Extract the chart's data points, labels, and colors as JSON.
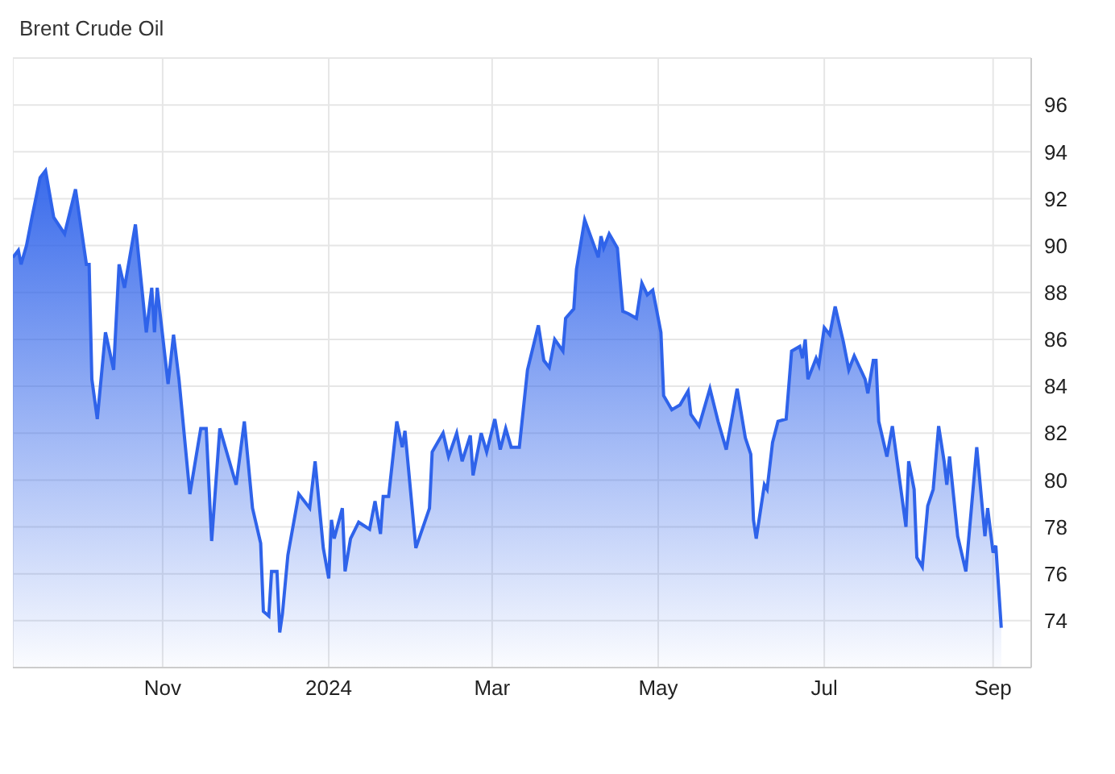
{
  "chart_data": {
    "type": "area",
    "title": "Brent Crude Oil",
    "x": [
      "2023-09-07",
      "2023-09-09",
      "2023-09-10",
      "2023-09-12",
      "2023-09-14",
      "2023-09-17",
      "2023-09-19",
      "2023-09-22",
      "2023-09-26",
      "2023-09-30",
      "2023-10-04",
      "2023-10-05",
      "2023-10-06",
      "2023-10-08",
      "2023-10-11",
      "2023-10-14",
      "2023-10-16",
      "2023-10-18",
      "2023-10-22",
      "2023-10-26",
      "2023-10-28",
      "2023-10-29",
      "2023-10-30",
      "2023-11-03",
      "2023-11-05",
      "2023-11-07",
      "2023-11-11",
      "2023-11-15",
      "2023-11-17",
      "2023-11-19",
      "2023-11-22",
      "2023-11-28",
      "2023-12-01",
      "2023-12-04",
      "2023-12-07",
      "2023-12-08",
      "2023-12-10",
      "2023-12-11",
      "2023-12-13",
      "2023-12-14",
      "2023-12-15",
      "2023-12-17",
      "2023-12-21",
      "2023-12-25",
      "2023-12-27",
      "2023-12-30",
      "2024-01-01",
      "2024-01-02",
      "2024-01-03",
      "2024-01-06",
      "2024-01-07",
      "2024-01-09",
      "2024-01-12",
      "2024-01-16",
      "2024-01-18",
      "2024-01-20",
      "2024-01-21",
      "2024-01-23",
      "2024-01-26",
      "2024-01-28",
      "2024-01-29",
      "2024-02-02",
      "2024-02-07",
      "2024-02-08",
      "2024-02-10",
      "2024-02-12",
      "2024-02-14",
      "2024-02-17",
      "2024-02-19",
      "2024-02-22",
      "2024-02-23",
      "2024-02-26",
      "2024-02-28",
      "2024-03-02",
      "2024-03-04",
      "2024-03-06",
      "2024-03-08",
      "2024-03-11",
      "2024-03-14",
      "2024-03-18",
      "2024-03-20",
      "2024-03-22",
      "2024-03-24",
      "2024-03-27",
      "2024-03-28",
      "2024-03-31",
      "2024-04-01",
      "2024-04-04",
      "2024-04-09",
      "2024-04-10",
      "2024-04-11",
      "2024-04-13",
      "2024-04-16",
      "2024-04-18",
      "2024-04-20",
      "2024-04-23",
      "2024-04-25",
      "2024-04-27",
      "2024-04-29",
      "2024-05-02",
      "2024-05-03",
      "2024-05-06",
      "2024-05-09",
      "2024-05-12",
      "2024-05-13",
      "2024-05-16",
      "2024-05-20",
      "2024-05-23",
      "2024-05-26",
      "2024-05-30",
      "2024-06-02",
      "2024-06-04",
      "2024-06-05",
      "2024-06-06",
      "2024-06-09",
      "2024-06-10",
      "2024-06-12",
      "2024-06-14",
      "2024-06-17",
      "2024-06-19",
      "2024-06-22",
      "2024-06-23",
      "2024-06-24",
      "2024-06-25",
      "2024-06-28",
      "2024-06-29",
      "2024-07-01",
      "2024-07-03",
      "2024-07-05",
      "2024-07-08",
      "2024-07-10",
      "2024-07-12",
      "2024-07-16",
      "2024-07-17",
      "2024-07-19",
      "2024-07-20",
      "2024-07-21",
      "2024-07-24",
      "2024-07-26",
      "2024-07-31",
      "2024-08-01",
      "2024-08-03",
      "2024-08-04",
      "2024-08-06",
      "2024-08-08",
      "2024-08-10",
      "2024-08-12",
      "2024-08-14",
      "2024-08-15",
      "2024-08-16",
      "2024-08-19",
      "2024-08-22",
      "2024-08-26",
      "2024-08-29",
      "2024-08-30",
      "2024-09-01",
      "2024-09-02",
      "2024-09-04"
    ],
    "series": [
      {
        "color": "#2f63ea",
        "values": [
          89.5,
          89.8,
          89.2,
          90.0,
          91.2,
          92.9,
          93.2,
          91.2,
          90.5,
          92.4,
          89.2,
          89.2,
          84.3,
          82.6,
          86.3,
          84.7,
          89.2,
          88.2,
          90.9,
          86.3,
          88.2,
          86.3,
          88.2,
          84.1,
          86.2,
          84.3,
          79.4,
          82.2,
          82.2,
          77.4,
          82.2,
          79.8,
          82.5,
          78.8,
          77.3,
          74.4,
          74.2,
          76.1,
          76.1,
          73.5,
          74.3,
          76.8,
          79.4,
          78.8,
          80.8,
          77.1,
          75.8,
          78.3,
          77.5,
          78.8,
          76.1,
          77.5,
          78.2,
          77.9,
          79.1,
          77.7,
          79.3,
          79.3,
          82.5,
          81.4,
          82.1,
          77.1,
          78.8,
          81.2,
          81.6,
          82.0,
          81.0,
          82.0,
          80.8,
          81.9,
          80.2,
          82.0,
          81.2,
          82.6,
          81.3,
          82.2,
          81.4,
          81.4,
          84.7,
          86.6,
          85.1,
          84.8,
          86.0,
          85.5,
          86.9,
          87.3,
          89.0,
          91.1,
          89.5,
          90.4,
          89.9,
          90.5,
          89.9,
          87.2,
          87.1,
          86.9,
          88.4,
          87.9,
          88.1,
          86.3,
          83.6,
          83.0,
          83.2,
          83.8,
          82.8,
          82.3,
          83.9,
          82.5,
          81.3,
          83.9,
          81.8,
          81.1,
          78.3,
          77.5,
          79.8,
          79.6,
          81.6,
          82.5,
          82.6,
          85.5,
          85.7,
          85.2,
          86.0,
          84.3,
          85.2,
          84.9,
          86.5,
          86.2,
          87.4,
          85.9,
          84.7,
          85.3,
          84.3,
          83.7,
          85.1,
          85.1,
          82.5,
          81.0,
          82.3,
          78.0,
          80.8,
          79.6,
          76.7,
          76.3,
          78.9,
          79.6,
          82.3,
          80.8,
          79.8,
          81.0,
          77.6,
          76.1,
          81.4,
          77.6,
          78.8,
          76.9,
          77.2,
          73.7
        ]
      }
    ],
    "xlim": [
      "2023-09-07",
      "2024-09-15"
    ],
    "xticks": [
      {
        "value": "2023-11-01",
        "label": "Nov"
      },
      {
        "value": "2024-01-01",
        "label": "2024"
      },
      {
        "value": "2024-03-01",
        "label": "Mar"
      },
      {
        "value": "2024-05-01",
        "label": "May"
      },
      {
        "value": "2024-07-01",
        "label": "Jul"
      },
      {
        "value": "2024-09-01",
        "label": "Sep"
      }
    ],
    "ylim": [
      72,
      98
    ],
    "yticks": [
      74,
      76,
      78,
      80,
      82,
      84,
      86,
      88,
      90,
      92,
      94,
      96
    ],
    "grid": true
  }
}
